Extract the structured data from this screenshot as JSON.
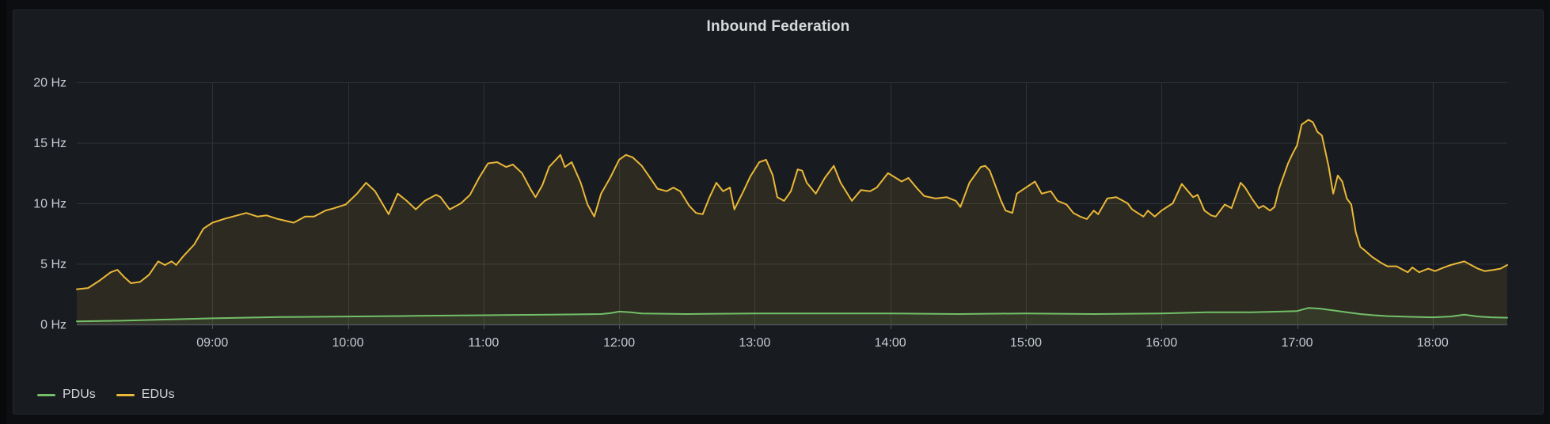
{
  "panel": {
    "title": "Inbound Federation"
  },
  "colors": {
    "page_background": "#0d0e11",
    "panel_background": "#181b1f",
    "panel_border": "#24272d",
    "grid_line": "#2e3136",
    "axis_line": "#4e5258",
    "tick_text": "#c7ccd2",
    "title_text": "#d8d9da",
    "pdu_green": "#73BF69",
    "edu_yellow": "#EAB839"
  },
  "chart_data": {
    "type": "line",
    "title": "Inbound Federation",
    "unit": "Hz",
    "grid": true,
    "legend_position": "bottom-left",
    "fill_opacity": 0.1,
    "ylim": [
      0,
      20
    ],
    "xlim_minutes_of_day": [
      480,
      1113
    ],
    "y_ticks": [
      {
        "v": 0,
        "label": "0 Hz"
      },
      {
        "v": 5,
        "label": "5 Hz"
      },
      {
        "v": 10,
        "label": "10 Hz"
      },
      {
        "v": 15,
        "label": "15 Hz"
      },
      {
        "v": 20,
        "label": "20 Hz"
      }
    ],
    "x_ticks": [
      {
        "t": 540,
        "label": "09:00"
      },
      {
        "t": 600,
        "label": "10:00"
      },
      {
        "t": 660,
        "label": "11:00"
      },
      {
        "t": 720,
        "label": "12:00"
      },
      {
        "t": 780,
        "label": "13:00"
      },
      {
        "t": 840,
        "label": "14:00"
      },
      {
        "t": 900,
        "label": "15:00"
      },
      {
        "t": 960,
        "label": "16:00"
      },
      {
        "t": 1020,
        "label": "17:00"
      },
      {
        "t": 1080,
        "label": "18:00"
      }
    ],
    "series": [
      {
        "name": "PDUs",
        "color": "#73BF69",
        "points": [
          [
            480,
            0.25
          ],
          [
            500,
            0.3
          ],
          [
            520,
            0.4
          ],
          [
            540,
            0.5
          ],
          [
            570,
            0.6
          ],
          [
            600,
            0.65
          ],
          [
            630,
            0.7
          ],
          [
            660,
            0.75
          ],
          [
            690,
            0.8
          ],
          [
            712,
            0.85
          ],
          [
            716,
            0.92
          ],
          [
            720,
            1.05
          ],
          [
            725,
            1.0
          ],
          [
            730,
            0.9
          ],
          [
            750,
            0.85
          ],
          [
            780,
            0.9
          ],
          [
            810,
            0.9
          ],
          [
            840,
            0.9
          ],
          [
            870,
            0.85
          ],
          [
            900,
            0.9
          ],
          [
            930,
            0.85
          ],
          [
            960,
            0.9
          ],
          [
            980,
            1.0
          ],
          [
            1000,
            1.0
          ],
          [
            1012,
            1.05
          ],
          [
            1020,
            1.1
          ],
          [
            1025,
            1.35
          ],
          [
            1030,
            1.3
          ],
          [
            1036,
            1.15
          ],
          [
            1042,
            1.0
          ],
          [
            1048,
            0.85
          ],
          [
            1054,
            0.75
          ],
          [
            1060,
            0.68
          ],
          [
            1070,
            0.62
          ],
          [
            1080,
            0.58
          ],
          [
            1088,
            0.65
          ],
          [
            1094,
            0.8
          ],
          [
            1100,
            0.65
          ],
          [
            1106,
            0.58
          ],
          [
            1113,
            0.55
          ]
        ]
      },
      {
        "name": "EDUs",
        "color": "#EAB839",
        "points": [
          [
            480,
            2.9
          ],
          [
            485,
            3.0
          ],
          [
            490,
            3.6
          ],
          [
            495,
            4.3
          ],
          [
            498,
            4.5
          ],
          [
            501,
            3.9
          ],
          [
            504,
            3.4
          ],
          [
            508,
            3.5
          ],
          [
            512,
            4.1
          ],
          [
            516,
            5.2
          ],
          [
            519,
            4.9
          ],
          [
            522,
            5.2
          ],
          [
            524,
            4.9
          ],
          [
            527,
            5.6
          ],
          [
            532,
            6.6
          ],
          [
            536,
            7.9
          ],
          [
            540,
            8.4
          ],
          [
            545,
            8.7
          ],
          [
            549,
            8.9
          ],
          [
            555,
            9.2
          ],
          [
            560,
            8.9
          ],
          [
            564,
            9.0
          ],
          [
            569,
            8.7
          ],
          [
            576,
            8.4
          ],
          [
            581,
            8.9
          ],
          [
            585,
            8.9
          ],
          [
            590,
            9.4
          ],
          [
            594,
            9.6
          ],
          [
            599,
            9.9
          ],
          [
            604,
            10.8
          ],
          [
            608,
            11.7
          ],
          [
            612,
            11.0
          ],
          [
            618,
            9.1
          ],
          [
            622,
            10.8
          ],
          [
            626,
            10.2
          ],
          [
            630,
            9.5
          ],
          [
            634,
            10.2
          ],
          [
            639,
            10.7
          ],
          [
            641,
            10.5
          ],
          [
            645,
            9.5
          ],
          [
            650,
            10.0
          ],
          [
            654,
            10.7
          ],
          [
            658,
            12.1
          ],
          [
            662,
            13.3
          ],
          [
            666,
            13.4
          ],
          [
            670,
            13.0
          ],
          [
            673,
            13.2
          ],
          [
            677,
            12.5
          ],
          [
            681,
            11.1
          ],
          [
            683,
            10.5
          ],
          [
            686,
            11.5
          ],
          [
            689,
            13.0
          ],
          [
            694,
            14.0
          ],
          [
            696,
            13.0
          ],
          [
            699,
            13.4
          ],
          [
            703,
            11.7
          ],
          [
            706,
            9.9
          ],
          [
            709,
            8.9
          ],
          [
            712,
            10.8
          ],
          [
            716,
            12.1
          ],
          [
            720,
            13.6
          ],
          [
            723,
            14.0
          ],
          [
            726,
            13.8
          ],
          [
            730,
            13.1
          ],
          [
            733,
            12.3
          ],
          [
            737,
            11.2
          ],
          [
            741,
            11.0
          ],
          [
            744,
            11.3
          ],
          [
            747,
            11.0
          ],
          [
            751,
            9.8
          ],
          [
            754,
            9.2
          ],
          [
            757,
            9.1
          ],
          [
            760,
            10.5
          ],
          [
            763,
            11.7
          ],
          [
            766,
            11.0
          ],
          [
            769,
            11.3
          ],
          [
            771,
            9.5
          ],
          [
            775,
            11.0
          ],
          [
            778,
            12.2
          ],
          [
            782,
            13.4
          ],
          [
            785,
            13.6
          ],
          [
            788,
            12.3
          ],
          [
            790,
            10.5
          ],
          [
            793,
            10.2
          ],
          [
            796,
            11.0
          ],
          [
            799,
            12.8
          ],
          [
            801,
            12.7
          ],
          [
            803,
            11.7
          ],
          [
            807,
            10.8
          ],
          [
            811,
            12.1
          ],
          [
            815,
            13.1
          ],
          [
            818,
            11.7
          ],
          [
            823,
            10.2
          ],
          [
            827,
            11.1
          ],
          [
            831,
            11.0
          ],
          [
            834,
            11.3
          ],
          [
            839,
            12.5
          ],
          [
            845,
            11.8
          ],
          [
            848,
            12.1
          ],
          [
            852,
            11.2
          ],
          [
            855,
            10.6
          ],
          [
            860,
            10.4
          ],
          [
            865,
            10.5
          ],
          [
            869,
            10.2
          ],
          [
            871,
            9.7
          ],
          [
            875,
            11.7
          ],
          [
            880,
            13.0
          ],
          [
            882,
            13.1
          ],
          [
            884,
            12.7
          ],
          [
            889,
            10.2
          ],
          [
            891,
            9.4
          ],
          [
            894,
            9.2
          ],
          [
            896,
            10.8
          ],
          [
            900,
            11.3
          ],
          [
            904,
            11.8
          ],
          [
            907,
            10.8
          ],
          [
            911,
            11.0
          ],
          [
            914,
            10.2
          ],
          [
            918,
            9.9
          ],
          [
            921,
            9.2
          ],
          [
            924,
            8.9
          ],
          [
            927,
            8.7
          ],
          [
            930,
            9.4
          ],
          [
            932,
            9.1
          ],
          [
            936,
            10.4
          ],
          [
            940,
            10.5
          ],
          [
            945,
            10.0
          ],
          [
            947,
            9.5
          ],
          [
            952,
            8.9
          ],
          [
            954,
            9.4
          ],
          [
            957,
            8.9
          ],
          [
            960,
            9.4
          ],
          [
            965,
            10.0
          ],
          [
            969,
            11.6
          ],
          [
            974,
            10.5
          ],
          [
            976,
            10.7
          ],
          [
            979,
            9.4
          ],
          [
            982,
            9.0
          ],
          [
            984,
            8.9
          ],
          [
            988,
            9.9
          ],
          [
            991,
            9.6
          ],
          [
            995,
            11.7
          ],
          [
            997,
            11.3
          ],
          [
            1000,
            10.4
          ],
          [
            1003,
            9.6
          ],
          [
            1005,
            9.8
          ],
          [
            1008,
            9.4
          ],
          [
            1010,
            9.7
          ],
          [
            1012,
            11.2
          ],
          [
            1016,
            13.3
          ],
          [
            1018,
            14.1
          ],
          [
            1020,
            14.8
          ],
          [
            1022,
            16.5
          ],
          [
            1025,
            16.9
          ],
          [
            1027,
            16.7
          ],
          [
            1029,
            15.9
          ],
          [
            1031,
            15.6
          ],
          [
            1034,
            13.0
          ],
          [
            1035,
            11.9
          ],
          [
            1036,
            10.8
          ],
          [
            1038,
            12.3
          ],
          [
            1040,
            11.8
          ],
          [
            1042,
            10.4
          ],
          [
            1044,
            9.9
          ],
          [
            1046,
            7.6
          ],
          [
            1048,
            6.4
          ],
          [
            1050,
            6.1
          ],
          [
            1053,
            5.6
          ],
          [
            1057,
            5.1
          ],
          [
            1060,
            4.8
          ],
          [
            1064,
            4.8
          ],
          [
            1069,
            4.3
          ],
          [
            1071,
            4.7
          ],
          [
            1074,
            4.3
          ],
          [
            1078,
            4.6
          ],
          [
            1081,
            4.4
          ],
          [
            1085,
            4.7
          ],
          [
            1088,
            4.9
          ],
          [
            1094,
            5.2
          ],
          [
            1097,
            4.9
          ],
          [
            1100,
            4.6
          ],
          [
            1103,
            4.4
          ],
          [
            1107,
            4.5
          ],
          [
            1110,
            4.6
          ],
          [
            1113,
            4.9
          ]
        ]
      }
    ]
  }
}
